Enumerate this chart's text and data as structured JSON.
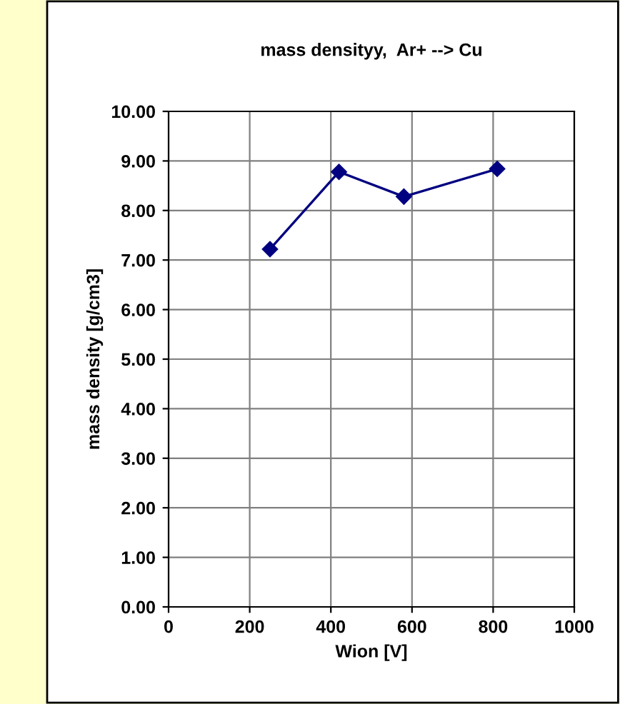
{
  "chart_data": {
    "type": "line",
    "title": "mass densityy,  Ar+ --> Cu",
    "xlabel": "Wion [V]",
    "ylabel": "mass density [g/cm3]",
    "x": [
      250,
      420,
      580,
      810
    ],
    "series": [
      {
        "color": "#000080",
        "values": [
          7.22,
          8.78,
          8.28,
          8.84
        ]
      }
    ],
    "xlim": [
      0,
      1000
    ],
    "xticks": [
      0,
      200,
      400,
      600,
      800,
      1000
    ],
    "ylim": [
      0,
      10
    ],
    "yticks": [
      {
        "value": 0,
        "label": "0.00"
      },
      {
        "value": 1,
        "label": "1.00"
      },
      {
        "value": 2,
        "label": "2.00"
      },
      {
        "value": 3,
        "label": "3.00"
      },
      {
        "value": 4,
        "label": "4.00"
      },
      {
        "value": 5,
        "label": "5.00"
      },
      {
        "value": 6,
        "label": "6.00"
      },
      {
        "value": 7,
        "label": "7.00"
      },
      {
        "value": 8,
        "label": "8.00"
      },
      {
        "value": 9,
        "label": "9.00"
      },
      {
        "value": 10,
        "label": "10.00"
      }
    ],
    "grid": true,
    "marker": "diamond",
    "line_style": "solid"
  }
}
